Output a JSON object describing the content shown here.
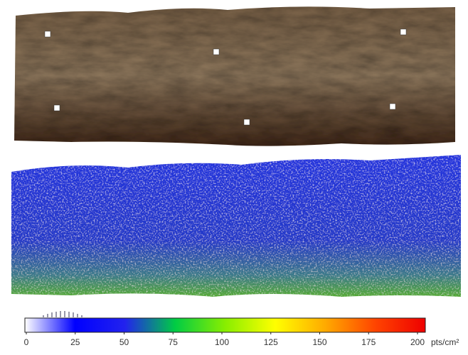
{
  "colorbar": {
    "ticks": [
      0,
      25,
      50,
      75,
      100,
      125,
      150,
      175,
      200
    ],
    "lim": [
      0,
      200
    ],
    "unit": "pts/cm²",
    "colors": [
      "#ffffff",
      "#0000ff",
      "#2222ee",
      "#00cc44",
      "#88ee00",
      "#ffff00",
      "#ffaa00",
      "#ff4400",
      "#ee0000"
    ]
  }
}
